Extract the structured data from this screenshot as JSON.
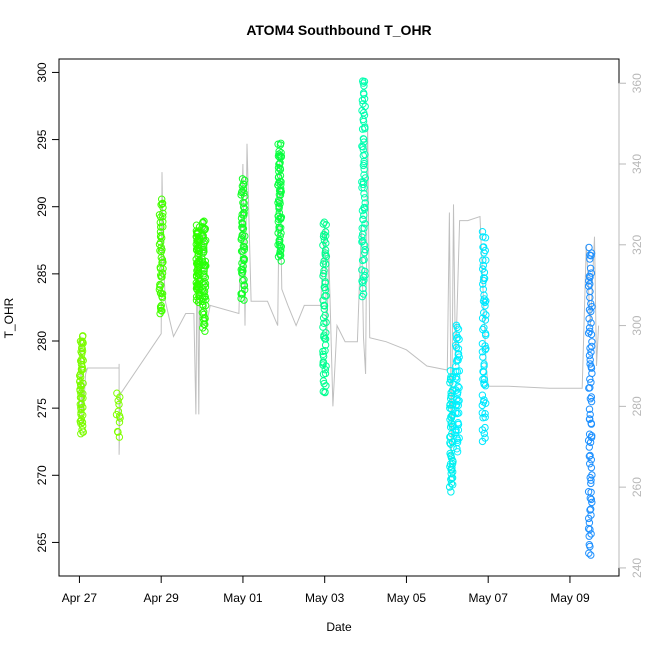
{
  "chart_data": {
    "type": "scatter",
    "title": "ATOM4 Southbound T_OHR",
    "xlabel": "Date",
    "ylabel": "T_OHR",
    "x_ticks": [
      "Apr 27",
      "Apr 29",
      "May 01",
      "May 03",
      "May 05",
      "May 07",
      "May 09"
    ],
    "x_tick_days": [
      0,
      2,
      4,
      6,
      8,
      10,
      12
    ],
    "xlim_days": [
      -0.5,
      13.2
    ],
    "y_ticks": [
      265,
      270,
      275,
      280,
      285,
      290,
      295,
      300
    ],
    "ylim": [
      262.5,
      301
    ],
    "y2_ticks": [
      240,
      260,
      280,
      300,
      320,
      340,
      360
    ],
    "y2lim": [
      238,
      366
    ],
    "grid": false,
    "color_scale": "rainbow by time (green → cyan → blue)",
    "point_series": [
      {
        "day": 0.05,
        "ymin": 273,
        "ymax": 280.5,
        "density": 55,
        "color": "#7cfc00"
      },
      {
        "day": 0.95,
        "ymin": 273,
        "ymax": 276,
        "density": 12,
        "color": "#80ff00"
      },
      {
        "day": 2.0,
        "ymin": 282,
        "ymax": 290.5,
        "density": 50,
        "color": "#44ff00"
      },
      {
        "day": 2.9,
        "ymin": 283,
        "ymax": 288.5,
        "density": 70,
        "color": "#30ff00"
      },
      {
        "day": 3.05,
        "ymin": 281,
        "ymax": 289,
        "density": 60,
        "color": "#28ff08"
      },
      {
        "day": 4.0,
        "ymin": 283,
        "ymax": 292,
        "density": 60,
        "color": "#14ff28"
      },
      {
        "day": 4.9,
        "ymin": 286,
        "ymax": 294.8,
        "density": 70,
        "color": "#0aff40"
      },
      {
        "day": 6.0,
        "ymin": 276,
        "ymax": 289,
        "density": 60,
        "color": "#00ff90"
      },
      {
        "day": 6.95,
        "ymin": 283.5,
        "ymax": 299.5,
        "density": 70,
        "color": "#00ffb0"
      },
      {
        "day": 9.1,
        "ymin": 269,
        "ymax": 277.5,
        "density": 60,
        "color": "#00f0f0"
      },
      {
        "day": 9.25,
        "ymin": 272,
        "ymax": 281,
        "density": 50,
        "color": "#00f0ff"
      },
      {
        "day": 9.9,
        "ymin": 272.8,
        "ymax": 288,
        "density": 60,
        "color": "#00e8ff"
      },
      {
        "day": 12.5,
        "ymin": 264,
        "ymax": 287,
        "density": 80,
        "color": "#1e90ff"
      }
    ],
    "right_axis_trace": {
      "color": "#c0c0c0",
      "points": [
        [
          0.0,
          278.2
        ],
        [
          0.03,
          297.5
        ],
        [
          0.06,
          276
        ],
        [
          0.08,
          284
        ],
        [
          0.1,
          279
        ],
        [
          0.15,
          288
        ],
        [
          0.2,
          289.5
        ],
        [
          0.5,
          289.5
        ],
        [
          0.97,
          289.5
        ],
        [
          0.97,
          290.5
        ],
        [
          0.97,
          268
        ],
        [
          1.0,
          283
        ],
        [
          2.0,
          298
        ],
        [
          2.02,
          338
        ],
        [
          2.05,
          318
        ],
        [
          2.1,
          306
        ],
        [
          2.3,
          297.3
        ],
        [
          2.6,
          303
        ],
        [
          2.8,
          303
        ],
        [
          2.85,
          278
        ],
        [
          2.88,
          322
        ],
        [
          2.92,
          278
        ],
        [
          2.95,
          318
        ],
        [
          3.0,
          316
        ],
        [
          3.05,
          326
        ],
        [
          3.1,
          300
        ],
        [
          3.2,
          305
        ],
        [
          3.9,
          303
        ],
        [
          4.0,
          340
        ],
        [
          4.05,
          300
        ],
        [
          4.1,
          345
        ],
        [
          4.2,
          306
        ],
        [
          4.4,
          306
        ],
        [
          4.6,
          306
        ],
        [
          4.85,
          300
        ],
        [
          4.9,
          341
        ],
        [
          4.95,
          309
        ],
        [
          5.1,
          305
        ],
        [
          5.3,
          300
        ],
        [
          5.5,
          305
        ],
        [
          5.6,
          305
        ],
        [
          5.9,
          305
        ],
        [
          6.0,
          325
        ],
        [
          6.05,
          296
        ],
        [
          6.1,
          318
        ],
        [
          6.2,
          280
        ],
        [
          6.3,
          300
        ],
        [
          6.5,
          296
        ],
        [
          6.8,
          296
        ],
        [
          6.9,
          325
        ],
        [
          6.95,
          297
        ],
        [
          7.0,
          288
        ],
        [
          7.05,
          350
        ],
        [
          7.1,
          297
        ],
        [
          7.5,
          296
        ],
        [
          8.0,
          294
        ],
        [
          8.5,
          290
        ],
        [
          9.0,
          289
        ],
        [
          9.05,
          328
        ],
        [
          9.1,
          268
        ],
        [
          9.15,
          330
        ],
        [
          9.2,
          290
        ],
        [
          9.3,
          326
        ],
        [
          9.5,
          326
        ],
        [
          9.8,
          327
        ],
        [
          9.95,
          290
        ],
        [
          10.0,
          285
        ],
        [
          10.5,
          285
        ],
        [
          11.5,
          284.5
        ],
        [
          12.3,
          284.5
        ],
        [
          12.4,
          320
        ],
        [
          12.5,
          300
        ],
        [
          12.6,
          322
        ],
        [
          12.65,
          290
        ],
        [
          12.7,
          300
        ]
      ]
    }
  }
}
